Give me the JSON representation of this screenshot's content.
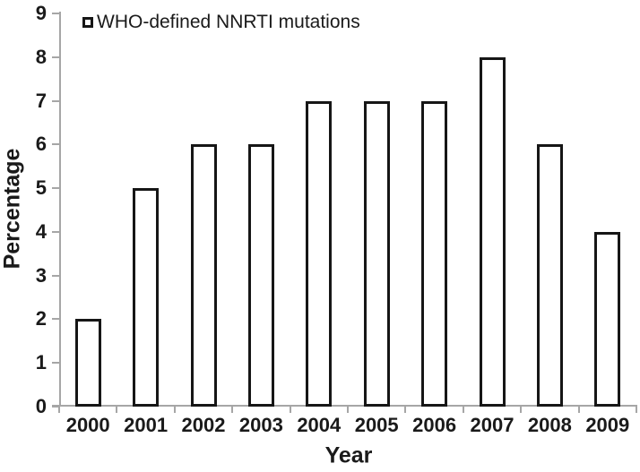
{
  "chart_data": {
    "type": "bar",
    "categories": [
      "2000",
      "2001",
      "2002",
      "2003",
      "2004",
      "2005",
      "2006",
      "2007",
      "2008",
      "2009"
    ],
    "series": [
      {
        "name": "WHO-defined NNRTI mutations",
        "values": [
          2,
          5,
          6,
          6,
          7,
          7,
          7,
          8,
          6,
          4
        ]
      }
    ],
    "title": "",
    "xlabel": "Year",
    "ylabel": "Percentage",
    "ylim": [
      0,
      9
    ],
    "yticks": [
      0,
      1,
      2,
      3,
      4,
      5,
      6,
      7,
      8,
      9
    ],
    "legend_position": "top-left",
    "grid": false,
    "colors": {
      "bar_fill": "#ffffff",
      "bar_border": "#161616",
      "axis": "#a6a6a6",
      "text": "#1a1a1a"
    }
  }
}
